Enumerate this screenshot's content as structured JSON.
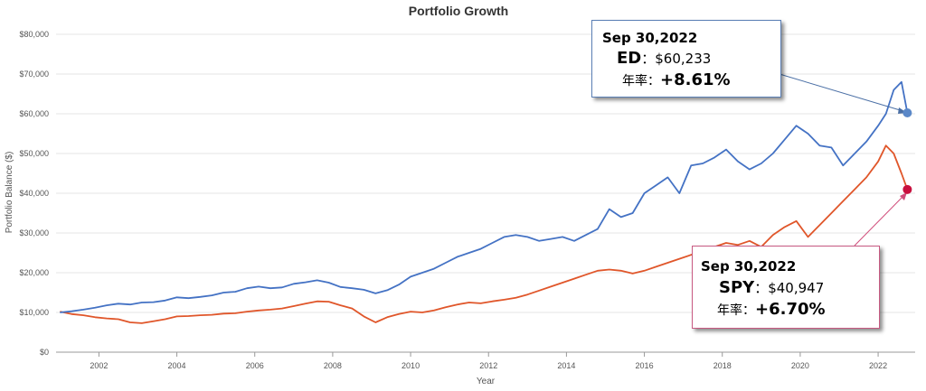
{
  "chart_data": {
    "type": "line",
    "title": "Portfolio Growth",
    "xlabel": "Year",
    "ylabel": "Portfolio Balance ($)",
    "xlim": [
      2000.9,
      2022.95
    ],
    "ylim": [
      0,
      80000
    ],
    "x_ticks": [
      "2002",
      "2004",
      "2006",
      "2008",
      "2010",
      "2012",
      "2014",
      "2016",
      "2018",
      "2020",
      "2022"
    ],
    "y_ticks": [
      "$0",
      "$10,000",
      "$20,000",
      "$30,000",
      "$40,000",
      "$50,000",
      "$60,000",
      "$70,000",
      "$80,000"
    ],
    "grid": true,
    "colors": {
      "ED": "#4472c4",
      "SPY": "#e0562a",
      "ED_marker": "#5b88c8",
      "SPY_marker": "#c8103e"
    },
    "series": [
      {
        "name": "ED",
        "x": [
          2001.0,
          2001.3,
          2001.6,
          2001.9,
          2002.2,
          2002.5,
          2002.8,
          2003.1,
          2003.4,
          2003.7,
          2004.0,
          2004.3,
          2004.6,
          2004.9,
          2005.2,
          2005.5,
          2005.8,
          2006.1,
          2006.4,
          2006.7,
          2007.0,
          2007.3,
          2007.6,
          2007.9,
          2008.2,
          2008.5,
          2008.8,
          2009.1,
          2009.4,
          2009.7,
          2010.0,
          2010.3,
          2010.6,
          2010.9,
          2011.2,
          2011.5,
          2011.8,
          2012.1,
          2012.4,
          2012.7,
          2013.0,
          2013.3,
          2013.6,
          2013.9,
          2014.2,
          2014.5,
          2014.8,
          2015.1,
          2015.4,
          2015.7,
          2016.0,
          2016.3,
          2016.6,
          2016.9,
          2017.2,
          2017.5,
          2017.8,
          2018.1,
          2018.4,
          2018.7,
          2019.0,
          2019.3,
          2019.6,
          2019.9,
          2020.2,
          2020.5,
          2020.8,
          2021.1,
          2021.4,
          2021.7,
          2022.0,
          2022.2,
          2022.4,
          2022.6,
          2022.75
        ],
        "values": [
          10000,
          10300,
          10700,
          11200,
          11800,
          12200,
          12000,
          12500,
          12600,
          13000,
          13800,
          13600,
          13900,
          14300,
          15000,
          15200,
          16100,
          16500,
          16100,
          16300,
          17200,
          17600,
          18100,
          17500,
          16400,
          16100,
          15700,
          14800,
          15600,
          17000,
          19000,
          20000,
          21000,
          22500,
          24000,
          25000,
          26000,
          27500,
          29000,
          29500,
          29000,
          28000,
          28500,
          29000,
          28000,
          29500,
          31000,
          36000,
          34000,
          35000,
          40000,
          42000,
          44000,
          40000,
          47000,
          47500,
          49000,
          51000,
          48000,
          46000,
          47500,
          50000,
          53500,
          57000,
          55000,
          52000,
          51500,
          47000,
          50000,
          53000,
          57000,
          60000,
          66000,
          68000,
          60233
        ]
      },
      {
        "name": "SPY",
        "x": [
          2001.0,
          2001.3,
          2001.6,
          2001.9,
          2002.2,
          2002.5,
          2002.8,
          2003.1,
          2003.4,
          2003.7,
          2004.0,
          2004.3,
          2004.6,
          2004.9,
          2005.2,
          2005.5,
          2005.8,
          2006.1,
          2006.4,
          2006.7,
          2007.0,
          2007.3,
          2007.6,
          2007.9,
          2008.2,
          2008.5,
          2008.8,
          2009.1,
          2009.4,
          2009.7,
          2010.0,
          2010.3,
          2010.6,
          2010.9,
          2011.2,
          2011.5,
          2011.8,
          2012.1,
          2012.4,
          2012.7,
          2013.0,
          2013.3,
          2013.6,
          2013.9,
          2014.2,
          2014.5,
          2014.8,
          2015.1,
          2015.4,
          2015.7,
          2016.0,
          2016.3,
          2016.6,
          2016.9,
          2017.2,
          2017.5,
          2017.8,
          2018.1,
          2018.4,
          2018.7,
          2019.0,
          2019.3,
          2019.6,
          2019.9,
          2020.2,
          2020.5,
          2020.8,
          2021.1,
          2021.4,
          2021.7,
          2022.0,
          2022.2,
          2022.4,
          2022.6,
          2022.75
        ],
        "values": [
          10200,
          9600,
          9300,
          8800,
          8500,
          8300,
          7500,
          7300,
          7800,
          8300,
          9000,
          9100,
          9300,
          9400,
          9700,
          9800,
          10200,
          10500,
          10700,
          11000,
          11600,
          12200,
          12800,
          12700,
          11800,
          11000,
          9000,
          7500,
          8800,
          9600,
          10200,
          10000,
          10500,
          11300,
          12000,
          12500,
          12300,
          12800,
          13200,
          13700,
          14500,
          15500,
          16500,
          17500,
          18500,
          19500,
          20500,
          20800,
          20500,
          19800,
          20500,
          21500,
          22500,
          23500,
          24500,
          25500,
          26500,
          27500,
          27000,
          28000,
          26500,
          29500,
          31500,
          33000,
          29000,
          32000,
          35000,
          38000,
          41000,
          44000,
          48000,
          52000,
          50000,
          45000,
          40947
        ]
      }
    ],
    "annotations": [
      {
        "series": "ED",
        "date": "Sep 30,2022",
        "ticker": "ED",
        "value_text": "$60,233",
        "label": "年率",
        "cagr": "+8.61%"
      },
      {
        "series": "SPY",
        "date": "Sep 30,2022",
        "ticker": "SPY",
        "value_text": "$40,947",
        "label": "年率",
        "cagr": "+6.70%"
      }
    ]
  }
}
